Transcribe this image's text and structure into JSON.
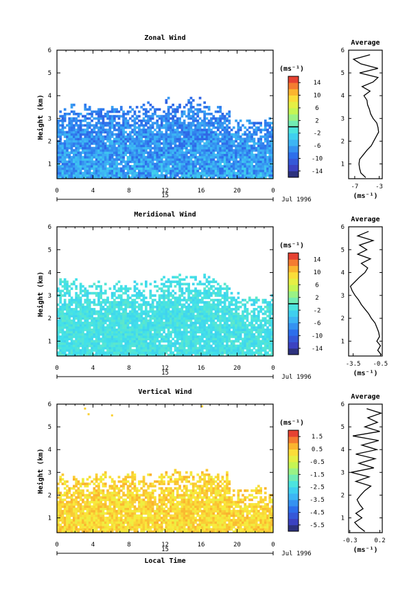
{
  "chart_data": [
    {
      "type": "heatmap",
      "title": "Zonal Wind",
      "ylabel": "Height (km)",
      "x_ticks": [
        "0",
        "4",
        "8",
        "12",
        "16",
        "20",
        "0"
      ],
      "y_ticks": [
        "1",
        "2",
        "3",
        "4",
        "5",
        "6"
      ],
      "xlim": [
        0,
        24
      ],
      "ylim": [
        0.35,
        6
      ],
      "date_day": "15",
      "date_month": "Jul 1996",
      "colorbar": {
        "unit": "(ms⁻¹)",
        "range": [
          -16,
          16
        ],
        "tick_labels": [
          "14",
          "10",
          "6",
          "2",
          "-2",
          "-6",
          "-10",
          "-14"
        ],
        "marker_value": 0
      },
      "data_coverage_top_km": 3.5,
      "typical_value_range": [
        -12,
        -2
      ],
      "profile": {
        "title": "Average",
        "xlabel": "(ms⁻¹)",
        "x_ticks": [
          "-7",
          "-3"
        ],
        "xlim": [
          -8,
          -2.5
        ],
        "height_km": [
          0.4,
          0.6,
          0.8,
          1.0,
          1.2,
          1.4,
          1.6,
          1.8,
          2.0,
          2.2,
          2.4,
          2.6,
          2.8,
          3.0,
          3.2,
          3.4,
          3.6,
          3.8,
          4.0,
          4.2,
          4.4,
          4.6,
          4.8,
          5.0,
          5.2,
          5.4,
          5.6,
          5.8
        ],
        "value": [
          -5.2,
          -6.0,
          -6.2,
          -6.3,
          -6.2,
          -5.6,
          -5.0,
          -4.3,
          -3.9,
          -3.5,
          -3.1,
          -3.2,
          -3.4,
          -4.0,
          -4.4,
          -4.6,
          -4.9,
          -5.0,
          -5.5,
          -4.5,
          -5.8,
          -4.0,
          -3.2,
          -6.2,
          -3.2,
          -6.0,
          -7.2,
          -4.5
        ]
      }
    },
    {
      "type": "heatmap",
      "title": "Meridional Wind",
      "ylabel": "Height (km)",
      "x_ticks": [
        "0",
        "4",
        "8",
        "12",
        "16",
        "20",
        "0"
      ],
      "y_ticks": [
        "1",
        "2",
        "3",
        "4",
        "5",
        "6"
      ],
      "xlim": [
        0,
        24
      ],
      "ylim": [
        0.35,
        6
      ],
      "date_day": "15",
      "date_month": "Jul 1996",
      "colorbar": {
        "unit": "(ms⁻¹)",
        "range": [
          -16,
          16
        ],
        "tick_labels": [
          "14",
          "10",
          "6",
          "2",
          "-2",
          "-6",
          "-10",
          "-14"
        ],
        "marker_value": 0
      },
      "data_coverage_top_km": 3.5,
      "typical_value_range": [
        -4,
        0
      ],
      "profile": {
        "title": "Average",
        "xlabel": "(ms⁻¹)",
        "x_ticks": [
          "-3.5",
          "-0.5"
        ],
        "xlim": [
          -4,
          -0.3
        ],
        "height_km": [
          0.4,
          0.6,
          0.8,
          1.0,
          1.2,
          1.4,
          1.6,
          1.8,
          2.0,
          2.2,
          2.4,
          2.6,
          2.8,
          3.0,
          3.2,
          3.4,
          3.6,
          3.8,
          4.0,
          4.2,
          4.4,
          4.6,
          4.8,
          5.0,
          5.2,
          5.4,
          5.6,
          5.8
        ],
        "value": [
          -0.4,
          -0.8,
          -0.5,
          -0.9,
          -0.6,
          -0.7,
          -0.9,
          -1.1,
          -1.5,
          -1.8,
          -2.2,
          -2.6,
          -2.9,
          -3.3,
          -3.6,
          -3.8,
          -3.3,
          -2.8,
          -2.2,
          -1.9,
          -2.6,
          -1.6,
          -3.0,
          -2.0,
          -2.8,
          -1.3,
          -3.0,
          -1.8
        ]
      }
    },
    {
      "type": "heatmap",
      "title": "Vertical Wind",
      "ylabel": "Height (km)",
      "xlabel": "Local Time",
      "x_ticks": [
        "0",
        "4",
        "8",
        "12",
        "16",
        "20",
        "0"
      ],
      "y_ticks": [
        "1",
        "2",
        "3",
        "4",
        "5",
        "6"
      ],
      "xlim": [
        0,
        24
      ],
      "ylim": [
        0.35,
        6
      ],
      "date_day": "15",
      "date_month": "Jul 1996",
      "colorbar": {
        "unit": "(ms⁻¹)",
        "range": [
          -6,
          2
        ],
        "tick_labels": [
          "1.5",
          "0.5",
          "-0.5",
          "-1.5",
          "-2.5",
          "-3.5",
          "-4.5",
          "-5.5"
        ]
      },
      "data_coverage_top_km": 2.8,
      "typical_value_range": [
        -0.6,
        0.8
      ],
      "profile": {
        "title": "Average",
        "xlabel": "(ms⁻¹)",
        "x_ticks": [
          "-0.3",
          "0.2"
        ],
        "xlim": [
          -0.32,
          0.24
        ],
        "height_km": [
          0.4,
          0.6,
          0.8,
          1.0,
          1.2,
          1.4,
          1.6,
          1.8,
          2.0,
          2.2,
          2.4,
          2.6,
          2.8,
          3.0,
          3.2,
          3.4,
          3.6,
          3.8,
          4.0,
          4.2,
          4.4,
          4.6,
          4.8,
          5.0,
          5.2,
          5.4,
          5.6,
          5.8
        ],
        "value": [
          -0.05,
          -0.15,
          -0.22,
          -0.1,
          -0.2,
          -0.08,
          -0.14,
          -0.18,
          -0.12,
          -0.05,
          0.05,
          -0.2,
          0.02,
          -0.28,
          0.1,
          -0.15,
          0.12,
          -0.2,
          0.15,
          -0.1,
          0.18,
          -0.25,
          0.2,
          -0.05,
          0.16,
          0.0,
          0.22,
          -0.02
        ]
      }
    }
  ]
}
